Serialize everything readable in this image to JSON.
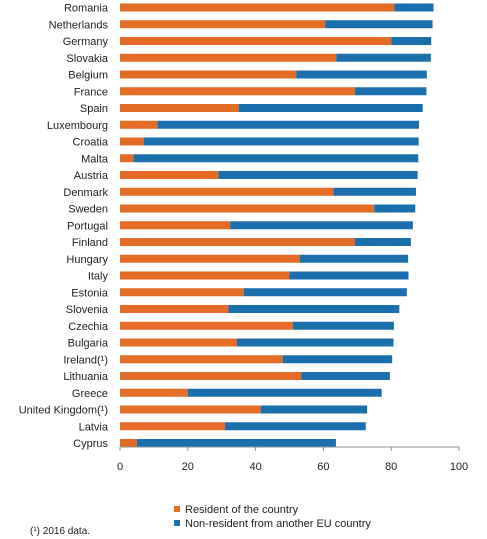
{
  "chart_data": {
    "type": "bar",
    "orientation": "horizontal",
    "stacked": true,
    "categories": [
      "Romania",
      "Netherlands",
      "Germany",
      "Slovakia",
      "Belgium",
      "France",
      "Spain",
      "Luxembourg",
      "Croatia",
      "Malta",
      "Austria",
      "Denmark",
      "Sweden",
      "Portugal",
      "Finland",
      "Hungary",
      "Italy",
      "Estonia",
      "Slovenia",
      "Czechia",
      "Bulgaria",
      "Ireland(¹)",
      "Lithuania",
      "Greece",
      "United Kingdom(¹)",
      "Latvia",
      "Cyprus"
    ],
    "series": [
      {
        "name": "Resident of the country",
        "color": "#e46c26",
        "values": [
          80.9,
          60.5,
          80.0,
          63.8,
          52.0,
          69.3,
          35.0,
          11.0,
          7.0,
          4.0,
          29.0,
          63.0,
          75.0,
          32.5,
          69.3,
          53.0,
          50.0,
          36.5,
          32.0,
          51.0,
          34.5,
          48.0,
          53.5,
          20.0,
          41.5,
          31.0,
          5.0
        ]
      },
      {
        "name": "Non-resident from another EU country",
        "color": "#1b6fad",
        "values": [
          11.6,
          31.7,
          11.8,
          27.9,
          38.5,
          21.1,
          54.3,
          77.2,
          81.1,
          84.0,
          58.8,
          24.3,
          12.1,
          53.9,
          16.5,
          32.0,
          35.1,
          48.1,
          50.4,
          29.8,
          46.2,
          32.3,
          26.1,
          57.2,
          31.4,
          41.5,
          58.7
        ]
      }
    ],
    "xlim": [
      0,
      100
    ],
    "xticks": [
      "0",
      "20",
      "40",
      "60",
      "80",
      "100"
    ],
    "legend_position": "bottom",
    "grid": false
  },
  "legend": {
    "resident": "Resident of the country",
    "non_resident": "Non-resident from another EU country"
  },
  "footnote": "(¹) 2016 data."
}
